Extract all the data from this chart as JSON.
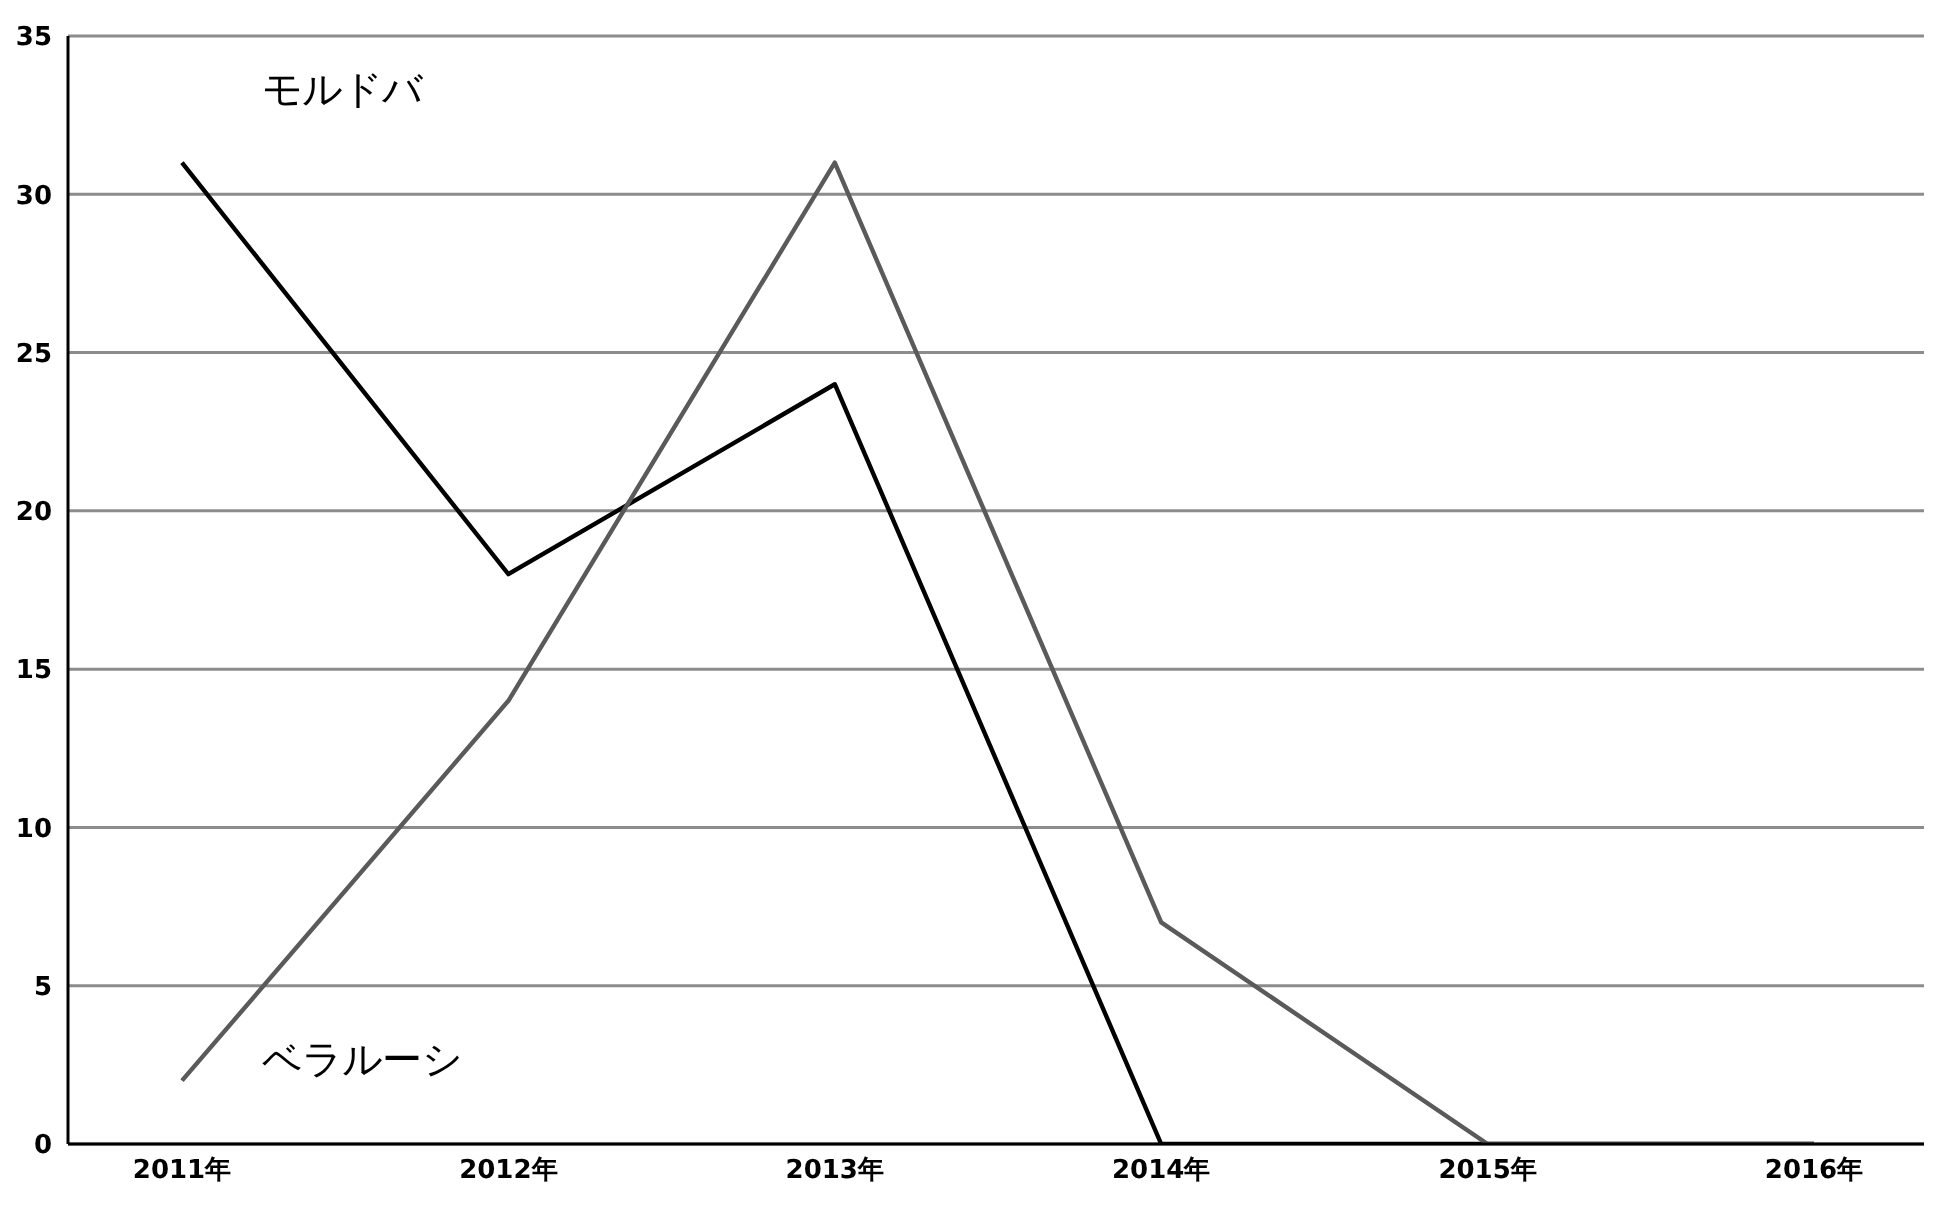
{
  "chart_data": {
    "type": "line",
    "categories": [
      "2011年",
      "2012年",
      "2013年",
      "2014年",
      "2015年",
      "2016年"
    ],
    "series": [
      {
        "name": "モルドバ",
        "color": "#000000",
        "values": [
          31,
          18,
          24,
          0,
          0,
          0
        ]
      },
      {
        "name": "ベラルーシ",
        "color": "#5a5a5a",
        "values": [
          2,
          14,
          31,
          7,
          0,
          0
        ]
      }
    ],
    "ylim": [
      0,
      35
    ],
    "yticks": [
      0,
      5,
      10,
      15,
      20,
      25,
      30,
      35
    ],
    "grid": "y",
    "legend": false,
    "marker": "none",
    "line_style": "solid"
  }
}
